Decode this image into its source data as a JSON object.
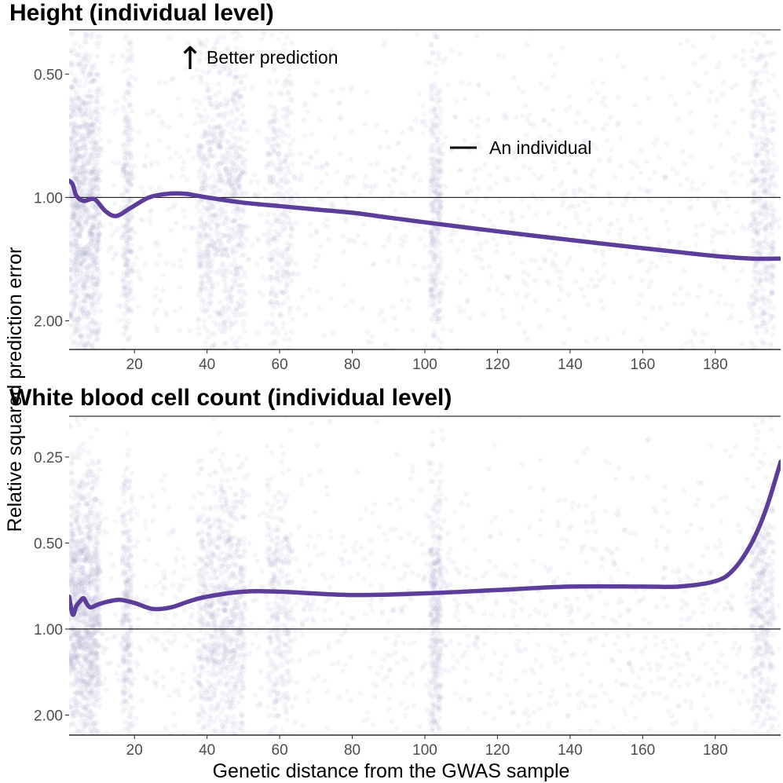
{
  "figure": {
    "ylabel": "Relative squared prediction error",
    "xlabel": "Genetic distance from the GWAS sample",
    "accent_color": "#5E3C99",
    "point_color": "#9E9AC8"
  },
  "annotations": {
    "better_arrow_glyph": "↑",
    "better_prediction": "Better prediction",
    "individual_marker": "—",
    "individual_label": "An individual"
  },
  "chart_data": [
    {
      "type": "scatter",
      "title": "Height (individual level)",
      "xlabel": "Genetic distance from the GWAS sample",
      "ylabel": "Relative squared prediction error",
      "y_scale": "log",
      "y_reversed": true,
      "xlim": [
        2,
        198
      ],
      "ylim": [
        0.39,
        2.35
      ],
      "x_ticks": [
        20,
        40,
        60,
        80,
        100,
        120,
        140,
        160,
        180
      ],
      "x_tick_labels": [
        "20",
        "40",
        "60",
        "80",
        "100",
        "120",
        "140",
        "160",
        "180"
      ],
      "y_ticks": [
        0.5,
        1.0,
        2.0
      ],
      "y_tick_labels": [
        "0.50",
        "1.00",
        "2.00"
      ],
      "reference_line": 1.0,
      "trend": {
        "x": [
          2,
          3,
          4,
          6,
          9,
          12,
          15,
          19,
          24,
          29,
          34,
          40,
          50,
          60,
          70,
          80,
          90,
          100,
          110,
          120,
          130,
          140,
          150,
          160,
          170,
          180,
          190,
          198
        ],
        "y": [
          0.91,
          0.93,
          0.99,
          1.02,
          1.01,
          1.08,
          1.11,
          1.06,
          1.0,
          0.98,
          0.98,
          1.0,
          1.03,
          1.05,
          1.07,
          1.09,
          1.12,
          1.15,
          1.18,
          1.21,
          1.24,
          1.27,
          1.3,
          1.33,
          1.36,
          1.39,
          1.41,
          1.41
        ]
      }
    },
    {
      "type": "scatter",
      "title": "White blood cell count (individual level)",
      "xlabel": "Genetic distance from the GWAS sample",
      "ylabel": "Relative squared prediction error",
      "y_scale": "log",
      "y_reversed": true,
      "xlim": [
        2,
        198
      ],
      "ylim": [
        0.18,
        2.35
      ],
      "x_ticks": [
        20,
        40,
        60,
        80,
        100,
        120,
        140,
        160,
        180
      ],
      "x_tick_labels": [
        "20",
        "40",
        "60",
        "80",
        "100",
        "120",
        "140",
        "160",
        "180"
      ],
      "y_ticks": [
        0.25,
        0.5,
        1.0,
        2.0
      ],
      "y_tick_labels": [
        "0.25",
        "0.50",
        "1.00",
        "2.00"
      ],
      "reference_line": 1.0,
      "trend": {
        "x": [
          2,
          3,
          4,
          5,
          6,
          7,
          8,
          10,
          13,
          16,
          20,
          25,
          30,
          35,
          40,
          50,
          60,
          80,
          100,
          120,
          140,
          160,
          170,
          180,
          185,
          190,
          194,
          198
        ],
        "y": [
          0.77,
          0.89,
          0.83,
          0.8,
          0.78,
          0.82,
          0.84,
          0.82,
          0.8,
          0.79,
          0.81,
          0.85,
          0.84,
          0.8,
          0.77,
          0.74,
          0.74,
          0.76,
          0.75,
          0.73,
          0.71,
          0.71,
          0.71,
          0.68,
          0.62,
          0.5,
          0.38,
          0.26
        ]
      }
    }
  ]
}
